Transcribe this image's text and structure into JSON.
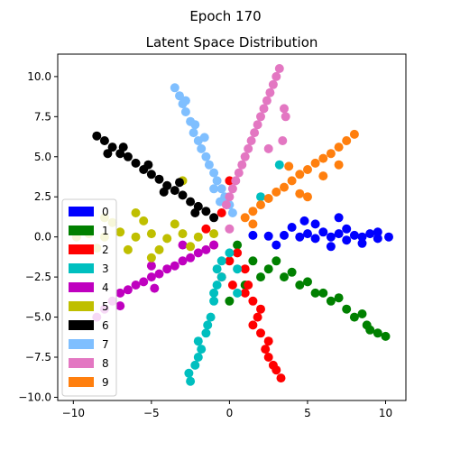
{
  "chart_data": {
    "type": "scatter",
    "suptitle": "Epoch 170",
    "title": "Latent Space Distribution",
    "xlabel": "",
    "ylabel": "",
    "xlim": [
      -11.0,
      11.3
    ],
    "ylim": [
      -10.2,
      11.4
    ],
    "xticks": [
      -10,
      -5,
      0,
      5,
      10
    ],
    "xtick_labels": [
      "−10",
      "−5",
      "0",
      "5",
      "10"
    ],
    "yticks": [
      -10.0,
      -7.5,
      -5.0,
      -2.5,
      0.0,
      2.5,
      5.0,
      7.5,
      10.0
    ],
    "ytick_labels": [
      "−10.0",
      "−7.5",
      "−5.0",
      "−2.5",
      "0.0",
      "2.5",
      "5.0",
      "7.5",
      "10.0"
    ],
    "grid": false,
    "legend_position": "lower-left",
    "legend": [
      {
        "label": "0",
        "color": "#0000ff"
      },
      {
        "label": "1",
        "color": "#008000"
      },
      {
        "label": "2",
        "color": "#ff0000"
      },
      {
        "label": "3",
        "color": "#00bfbf"
      },
      {
        "label": "4",
        "color": "#bf00bf"
      },
      {
        "label": "5",
        "color": "#bfbf00"
      },
      {
        "label": "6",
        "color": "#000000"
      },
      {
        "label": "7",
        "color": "#7fbfff"
      },
      {
        "label": "8",
        "color": "#e377c2"
      },
      {
        "label": "9",
        "color": "#ff7f0e"
      }
    ],
    "series": [
      {
        "name": "0",
        "color": "#0000ff",
        "points": [
          [
            1.5,
            0.1
          ],
          [
            2.5,
            0.05
          ],
          [
            3.5,
            0.1
          ],
          [
            4.5,
            0.0
          ],
          [
            5.0,
            0.2
          ],
          [
            5.5,
            -0.1
          ],
          [
            6.0,
            0.3
          ],
          [
            6.5,
            0.0
          ],
          [
            7.0,
            0.2
          ],
          [
            7.5,
            -0.2
          ],
          [
            8.0,
            0.1
          ],
          [
            8.5,
            0.0
          ],
          [
            9.0,
            0.2
          ],
          [
            9.5,
            -0.1
          ],
          [
            10.2,
            0.0
          ],
          [
            3.0,
            -0.5
          ],
          [
            4.0,
            0.6
          ],
          [
            5.5,
            0.8
          ],
          [
            6.5,
            -0.6
          ],
          [
            7.5,
            0.5
          ],
          [
            8.5,
            -0.4
          ],
          [
            9.5,
            0.3
          ],
          [
            4.8,
            1.0
          ],
          [
            7.0,
            1.2
          ]
        ]
      },
      {
        "name": "1",
        "color": "#008000",
        "points": [
          [
            0.5,
            -0.5
          ],
          [
            1.5,
            -1.5
          ],
          [
            2.5,
            -2.0
          ],
          [
            3.5,
            -2.5
          ],
          [
            4.5,
            -3.0
          ],
          [
            5.5,
            -3.5
          ],
          [
            6.5,
            -4.0
          ],
          [
            7.5,
            -4.5
          ],
          [
            8.0,
            -5.0
          ],
          [
            8.8,
            -5.5
          ],
          [
            9.5,
            -6.0
          ],
          [
            10.0,
            -6.2
          ],
          [
            3.0,
            -1.5
          ],
          [
            4.0,
            -2.2
          ],
          [
            5.0,
            -2.8
          ],
          [
            6.0,
            -3.5
          ],
          [
            7.0,
            -3.8
          ],
          [
            8.5,
            -4.8
          ],
          [
            9.0,
            -5.8
          ],
          [
            2.0,
            -2.5
          ],
          [
            0.0,
            -4.0
          ],
          [
            1.0,
            -3.0
          ]
        ]
      },
      {
        "name": "2",
        "color": "#ff0000",
        "points": [
          [
            0.5,
            -1.0
          ],
          [
            1.0,
            -2.0
          ],
          [
            1.2,
            -3.0
          ],
          [
            1.5,
            -4.0
          ],
          [
            1.8,
            -5.0
          ],
          [
            2.0,
            -6.0
          ],
          [
            2.3,
            -7.0
          ],
          [
            2.5,
            -7.5
          ],
          [
            2.8,
            -8.0
          ],
          [
            3.3,
            -8.8
          ],
          [
            1.0,
            -3.5
          ],
          [
            1.5,
            -5.5
          ],
          [
            2.0,
            -4.5
          ],
          [
            2.5,
            -6.5
          ],
          [
            3.0,
            -8.3
          ],
          [
            0.0,
            -1.5
          ],
          [
            0.2,
            -3.0
          ],
          [
            -0.5,
            -2.5
          ],
          [
            0.0,
            3.5
          ],
          [
            -0.5,
            1.5
          ],
          [
            -1.0,
            -0.5
          ],
          [
            -1.5,
            0.5
          ]
        ]
      },
      {
        "name": "3",
        "color": "#00bfbf",
        "points": [
          [
            -0.5,
            -1.5
          ],
          [
            -0.8,
            -3.0
          ],
          [
            -1.0,
            -4.0
          ],
          [
            -1.2,
            -5.0
          ],
          [
            -1.5,
            -6.0
          ],
          [
            -1.8,
            -7.0
          ],
          [
            -2.0,
            -7.5
          ],
          [
            -2.2,
            -8.0
          ],
          [
            -2.5,
            -9.0
          ],
          [
            -2.6,
            -8.5
          ],
          [
            -1.0,
            -3.5
          ],
          [
            -1.4,
            -5.5
          ],
          [
            -2.0,
            -6.5
          ],
          [
            -0.5,
            -2.5
          ],
          [
            0.0,
            -1.0
          ],
          [
            0.5,
            -2.0
          ],
          [
            -0.8,
            -2.0
          ],
          [
            3.2,
            4.5
          ],
          [
            2.0,
            2.5
          ],
          [
            0.5,
            -3.5
          ]
        ]
      },
      {
        "name": "4",
        "color": "#bf00bf",
        "points": [
          [
            -1.0,
            -0.5
          ],
          [
            -2.0,
            -1.0
          ],
          [
            -3.0,
            -1.5
          ],
          [
            -4.0,
            -2.0
          ],
          [
            -5.0,
            -2.5
          ],
          [
            -6.0,
            -3.0
          ],
          [
            -7.0,
            -3.5
          ],
          [
            -7.5,
            -4.0
          ],
          [
            -8.0,
            -4.5
          ],
          [
            -8.5,
            -5.0
          ],
          [
            -6.5,
            -3.3
          ],
          [
            -5.5,
            -2.8
          ],
          [
            -4.5,
            -2.3
          ],
          [
            -3.5,
            -1.8
          ],
          [
            -2.5,
            -1.3
          ],
          [
            -1.5,
            -0.8
          ],
          [
            -5.0,
            -1.8
          ],
          [
            -4.8,
            -3.2
          ],
          [
            -7.0,
            -4.3
          ],
          [
            -3.0,
            -0.5
          ]
        ]
      },
      {
        "name": "5",
        "color": "#bfbf00",
        "points": [
          [
            -1.0,
            0.2
          ],
          [
            -2.0,
            0.0
          ],
          [
            -3.0,
            0.2
          ],
          [
            -4.0,
            -0.1
          ],
          [
            -5.0,
            0.2
          ],
          [
            -6.0,
            0.0
          ],
          [
            -7.0,
            0.3
          ],
          [
            -8.0,
            0.0
          ],
          [
            -9.0,
            0.2
          ],
          [
            -9.8,
            0.0
          ],
          [
            -3.5,
            0.8
          ],
          [
            -4.5,
            -0.8
          ],
          [
            -5.5,
            1.0
          ],
          [
            -6.5,
            -0.8
          ],
          [
            -7.5,
            0.9
          ],
          [
            -8.5,
            -0.7
          ],
          [
            -2.5,
            -0.6
          ],
          [
            -6.0,
            1.5
          ],
          [
            -5.0,
            -1.3
          ],
          [
            -3.0,
            3.5
          ],
          [
            -8.0,
            1.2
          ]
        ]
      },
      {
        "name": "6",
        "color": "#000000",
        "points": [
          [
            -8.5,
            6.3
          ],
          [
            -8.0,
            6.0
          ],
          [
            -7.5,
            5.6
          ],
          [
            -7.0,
            5.2
          ],
          [
            -6.5,
            5.0
          ],
          [
            -6.0,
            4.6
          ],
          [
            -5.5,
            4.2
          ],
          [
            -5.0,
            3.9
          ],
          [
            -4.5,
            3.6
          ],
          [
            -4.0,
            3.2
          ],
          [
            -3.5,
            2.9
          ],
          [
            -3.0,
            2.6
          ],
          [
            -2.5,
            2.2
          ],
          [
            -2.0,
            1.9
          ],
          [
            -1.5,
            1.6
          ],
          [
            -1.0,
            1.2
          ],
          [
            -6.8,
            5.6
          ],
          [
            -5.2,
            4.5
          ],
          [
            -4.2,
            2.8
          ],
          [
            -3.2,
            3.4
          ],
          [
            -2.2,
            1.5
          ],
          [
            -7.8,
            5.2
          ]
        ]
      },
      {
        "name": "7",
        "color": "#7fbfff",
        "points": [
          [
            -3.5,
            9.3
          ],
          [
            -3.2,
            8.8
          ],
          [
            -3.0,
            8.3
          ],
          [
            -2.8,
            7.8
          ],
          [
            -2.5,
            7.2
          ],
          [
            -2.3,
            6.5
          ],
          [
            -2.0,
            6.0
          ],
          [
            -1.8,
            5.5
          ],
          [
            -1.5,
            5.0
          ],
          [
            -1.3,
            4.5
          ],
          [
            -1.0,
            4.0
          ],
          [
            -0.8,
            3.5
          ],
          [
            -0.5,
            3.0
          ],
          [
            -0.3,
            2.5
          ],
          [
            0.0,
            2.0
          ],
          [
            -2.2,
            7.0
          ],
          [
            -2.8,
            8.5
          ],
          [
            -1.6,
            6.2
          ],
          [
            -0.6,
            2.2
          ],
          [
            0.2,
            1.5
          ],
          [
            -1.0,
            3.0
          ]
        ]
      },
      {
        "name": "8",
        "color": "#e377c2",
        "points": [
          [
            3.2,
            10.5
          ],
          [
            3.0,
            10.0
          ],
          [
            2.8,
            9.5
          ],
          [
            2.6,
            9.0
          ],
          [
            2.4,
            8.5
          ],
          [
            2.2,
            8.0
          ],
          [
            2.0,
            7.5
          ],
          [
            1.8,
            7.0
          ],
          [
            1.6,
            6.5
          ],
          [
            1.4,
            6.0
          ],
          [
            1.2,
            5.5
          ],
          [
            1.0,
            5.0
          ],
          [
            0.8,
            4.5
          ],
          [
            0.6,
            4.0
          ],
          [
            0.4,
            3.5
          ],
          [
            0.2,
            3.0
          ],
          [
            0.0,
            2.5
          ],
          [
            -0.2,
            2.0
          ],
          [
            3.5,
            8.0
          ],
          [
            3.6,
            7.5
          ],
          [
            3.4,
            6.0
          ],
          [
            2.5,
            5.5
          ],
          [
            0.0,
            0.5
          ]
        ]
      },
      {
        "name": "9",
        "color": "#ff7f0e",
        "points": [
          [
            8.0,
            6.4
          ],
          [
            7.5,
            6.0
          ],
          [
            7.0,
            5.6
          ],
          [
            6.5,
            5.2
          ],
          [
            6.0,
            4.9
          ],
          [
            5.5,
            4.6
          ],
          [
            5.0,
            4.2
          ],
          [
            4.5,
            3.9
          ],
          [
            4.0,
            3.5
          ],
          [
            3.5,
            3.1
          ],
          [
            3.0,
            2.8
          ],
          [
            2.5,
            2.4
          ],
          [
            2.0,
            2.0
          ],
          [
            1.5,
            1.6
          ],
          [
            1.0,
            1.2
          ],
          [
            6.0,
            3.8
          ],
          [
            4.5,
            2.7
          ],
          [
            5.0,
            2.5
          ],
          [
            7.0,
            4.5
          ],
          [
            3.8,
            4.4
          ],
          [
            1.5,
            0.8
          ]
        ]
      }
    ]
  }
}
